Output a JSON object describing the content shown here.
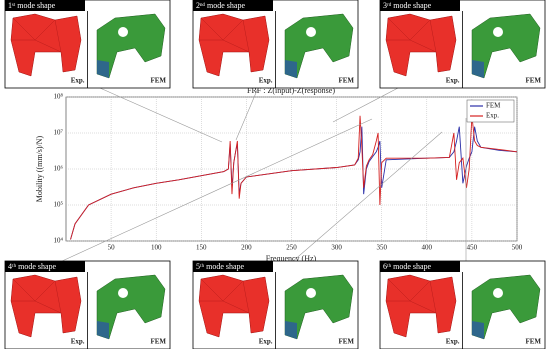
{
  "chart_data": {
    "type": "line",
    "title": "FRF : Z(input)-Z(response)",
    "x_label": "Frequency (Hz)",
    "y_label": "Mobility ((mm/s)/N)",
    "log_y": true,
    "grid": true,
    "legend": "upper right",
    "xlim": [
      0,
      500
    ],
    "xticks": [
      50,
      100,
      150,
      200,
      250,
      300,
      350,
      400,
      450,
      500
    ],
    "ylim": [
      10000,
      100000000
    ],
    "yticks": [
      {
        "value": 10000,
        "label": "10⁴"
      },
      {
        "value": 100000,
        "label": "10⁵"
      },
      {
        "value": 1000000,
        "label": "10⁶"
      },
      {
        "value": 10000000,
        "label": "10⁷"
      },
      {
        "value": 100000000,
        "label": "10⁸"
      }
    ],
    "x": [
      5,
      10,
      25,
      50,
      75,
      100,
      125,
      150,
      175,
      180,
      182,
      184,
      186,
      188,
      190,
      192,
      194,
      200,
      250,
      300,
      320,
      324,
      326,
      328,
      330,
      333,
      336,
      340,
      344,
      346,
      348,
      350,
      355,
      400,
      425,
      430,
      433,
      436,
      440,
      444,
      447,
      450,
      453,
      456,
      460,
      480,
      500
    ],
    "series": [
      {
        "name": "FEM",
        "color": "#2b2fa8",
        "values": [
          11000,
          30000,
          100000,
          200000,
          300000,
          400000,
          500000,
          650000,
          850000,
          1000000,
          5000000,
          300000,
          1500000,
          3000000,
          5000000,
          200000,
          400000,
          600000,
          900000,
          1100000,
          1300000,
          1800000,
          3000000,
          15000000,
          200000,
          1000000,
          1600000,
          2200000,
          3000000,
          4000000,
          6000000,
          300000,
          1800000,
          2000000,
          2100000,
          3000000,
          6000000,
          15000000,
          400000,
          1200000,
          2000000,
          3000000,
          15000000,
          6000000,
          4000000,
          3300000,
          3000000
        ]
      },
      {
        "name": "Exp.",
        "color": "#d42020",
        "values": [
          11000,
          30000,
          100000,
          200000,
          300000,
          400000,
          500000,
          650000,
          850000,
          1000000,
          6000000,
          200000,
          1500000,
          3000000,
          6000000,
          150000,
          400000,
          600000,
          900000,
          1100000,
          1300000,
          2000000,
          30000000,
          4000000,
          300000,
          1200000,
          1800000,
          2500000,
          6000000,
          10000000,
          100000,
          1500000,
          2000000,
          2000000,
          2100000,
          10000000,
          500000,
          1500000,
          2000000,
          300000,
          1000000,
          30000000,
          6000000,
          4500000,
          4000000,
          3500000,
          3000000
        ]
      }
    ]
  },
  "mode_shapes": [
    {
      "title": "1ˢᵗ mode shape",
      "exp_label": "Exp.",
      "fem_label": "FEM"
    },
    {
      "title": "2ⁿᵈ mode shape",
      "exp_label": "Exp.",
      "fem_label": "FEM"
    },
    {
      "title": "3ʳᵈ mode shape",
      "exp_label": "Exp.",
      "fem_label": "FEM"
    },
    {
      "title": "4ᵗʰ mode shape",
      "exp_label": "Exp.",
      "fem_label": "FEM"
    },
    {
      "title": "5ᵗʰ mode shape",
      "exp_label": "Exp.",
      "fem_label": "FEM"
    },
    {
      "title": "6ᵗʰ mode shape",
      "exp_label": "Exp.",
      "fem_label": "FEM"
    }
  ]
}
